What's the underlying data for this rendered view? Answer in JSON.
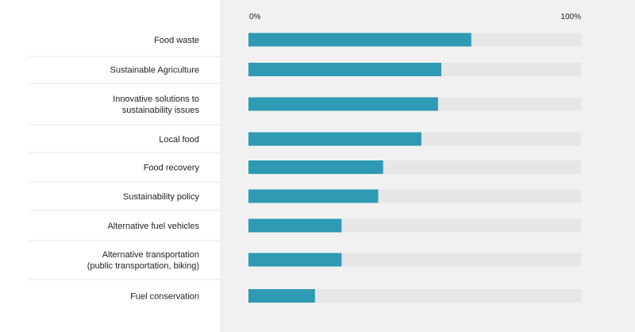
{
  "chart_data": {
    "type": "bar",
    "orientation": "horizontal",
    "title": "",
    "xlabel": "",
    "ylabel": "",
    "xlim": [
      0,
      100
    ],
    "x_tick_labels": [
      "0%",
      "100%"
    ],
    "categories": [
      [
        "Food waste"
      ],
      [
        "Sustainable Agriculture"
      ],
      [
        "Innovative solutions to",
        "sustainability issues"
      ],
      [
        "Local food"
      ],
      [
        "Food recovery"
      ],
      [
        "Sustainability policy"
      ],
      [
        "Alternative fuel vehicles"
      ],
      [
        "Alternative transportation",
        "(public transportation, biking)"
      ],
      [
        "Fuel conservation"
      ]
    ],
    "values": [
      67,
      58,
      57,
      52,
      40.5,
      39,
      28,
      28,
      20
    ],
    "grid": false,
    "legend": "none"
  },
  "colors": {
    "bar": "#2e9ab3",
    "track": "#e6e6e6",
    "panel": "#f1f1f1",
    "divider": "#e4e4e4"
  }
}
